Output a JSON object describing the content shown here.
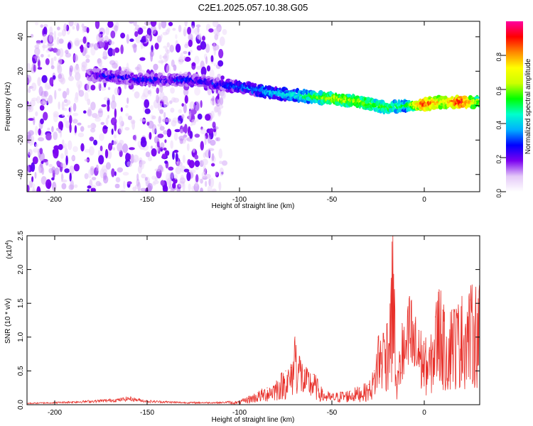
{
  "title": "C2E1.2025.057.10.38.G05",
  "chart_data": [
    {
      "type": "heatmap",
      "title": "C2E1.2025.057.10.38.G05",
      "xlabel": "Height of straight line (km)",
      "ylabel": "Frequency (Hz)",
      "xlim": [
        -215,
        30
      ],
      "ylim": [
        -50,
        49
      ],
      "x_ticks": [
        -200,
        -150,
        -100,
        -50,
        0
      ],
      "y_ticks": [
        -40,
        -20,
        0,
        20,
        40
      ],
      "colorbar": {
        "label": "Normalized spectral amplitude",
        "range": [
          0,
          1
        ],
        "ticks": [
          0.0,
          0.2,
          0.4,
          0.6,
          0.8
        ],
        "tick_labels": [
          "0.0",
          "0.2",
          "0.4",
          "0.6",
          "0.8"
        ],
        "colormap": [
          "#ffffff",
          "#e4c8f8",
          "#7b00f0",
          "#0000ff",
          "#00b0ff",
          "#00ffcc",
          "#00ff00",
          "#ccff00",
          "#ffff00",
          "#ff8800",
          "#ff0000",
          "#ff00a0"
        ]
      },
      "ridge": {
        "x": [
          -182,
          -170,
          -160,
          -150,
          -140,
          -130,
          -120,
          -110,
          -100,
          -90,
          -80,
          -70,
          -60,
          -50,
          -40,
          -30,
          -20,
          -10,
          0,
          10,
          20,
          30
        ],
        "frequency": [
          18,
          17,
          16,
          15,
          15,
          15,
          14,
          12,
          11,
          9,
          7,
          6,
          5,
          4,
          3,
          1,
          -1,
          0,
          1,
          2,
          2,
          2
        ],
        "amplitude": [
          0.2,
          0.28,
          0.25,
          0.28,
          0.25,
          0.3,
          0.25,
          0.28,
          0.32,
          0.38,
          0.4,
          0.45,
          0.55,
          0.65,
          0.65,
          0.6,
          0.55,
          0.5,
          0.9,
          0.7,
          0.95,
          0.6
        ]
      },
      "noise_region": {
        "x_range": [
          -215,
          -108
        ],
        "frequency_range": [
          -50,
          49
        ]
      }
    },
    {
      "type": "line",
      "xlabel": "Height of straight line (km)",
      "ylabel": "SNR (10 * v/v)",
      "y_scale_note": "(x10",
      "y_scale_exponent": "4",
      "xlim": [
        -215,
        30
      ],
      "ylim": [
        0,
        2.5
      ],
      "x_ticks": [
        -200,
        -150,
        -100,
        -50,
        0
      ],
      "y_ticks": [
        0.0,
        0.5,
        1.0,
        1.5,
        2.0,
        2.5
      ],
      "y_tick_labels": [
        "0.0",
        "0.5",
        "1.0",
        "1.5",
        "2.0",
        "2.5"
      ],
      "series": [
        {
          "color": "#e8302a",
          "x": [
            -215,
            -200,
            -180,
            -165,
            -160,
            -150,
            -130,
            -110,
            -100,
            -95,
            -90,
            -85,
            -80,
            -75,
            -72,
            -70,
            -65,
            -60,
            -55,
            -50,
            -45,
            -40,
            -35,
            -30,
            -27,
            -25,
            -22,
            -20,
            -18,
            -17,
            -16,
            -15,
            -12,
            -10,
            -8,
            -5,
            -3,
            0,
            3,
            6,
            8,
            10,
            12,
            15,
            18,
            20,
            25,
            30
          ],
          "values": [
            0.02,
            0.03,
            0.05,
            0.07,
            0.09,
            0.05,
            0.03,
            0.03,
            0.05,
            0.12,
            0.18,
            0.25,
            0.35,
            0.5,
            0.55,
            1.0,
            0.5,
            0.45,
            0.2,
            0.15,
            0.18,
            0.2,
            0.25,
            0.3,
            0.5,
            1.0,
            1.05,
            1.2,
            1.6,
            2.5,
            1.4,
            0.3,
            1.2,
            0.95,
            1.6,
            1.2,
            1.1,
            0.9,
            0.8,
            1.3,
            1.7,
            1.4,
            1.0,
            1.4,
            1.35,
            1.45,
            1.55,
            1.65
          ]
        }
      ]
    }
  ]
}
